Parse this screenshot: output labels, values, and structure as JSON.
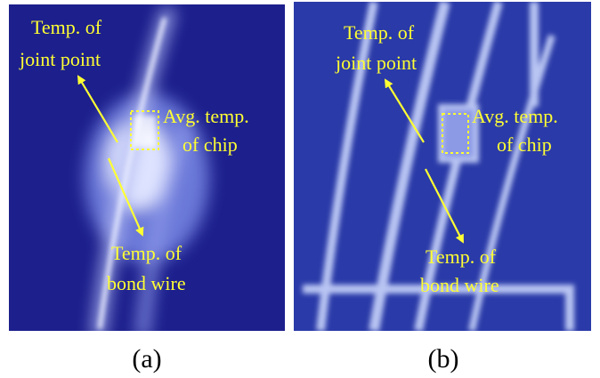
{
  "panels": [
    {
      "caption": "(a)",
      "annotations": [
        {
          "lines": [
            "Temp. of",
            "joint point"
          ]
        },
        {
          "lines": [
            "Avg. temp.",
            "of chip"
          ]
        },
        {
          "lines": [
            "Temp. of",
            "bond wire"
          ]
        }
      ]
    },
    {
      "caption": "(b)",
      "annotations": [
        {
          "lines": [
            "Temp. of",
            "joint point"
          ]
        },
        {
          "lines": [
            "Avg. temp.",
            "of chip"
          ]
        },
        {
          "lines": [
            "Temp. of",
            "bond wire"
          ]
        }
      ]
    }
  ]
}
